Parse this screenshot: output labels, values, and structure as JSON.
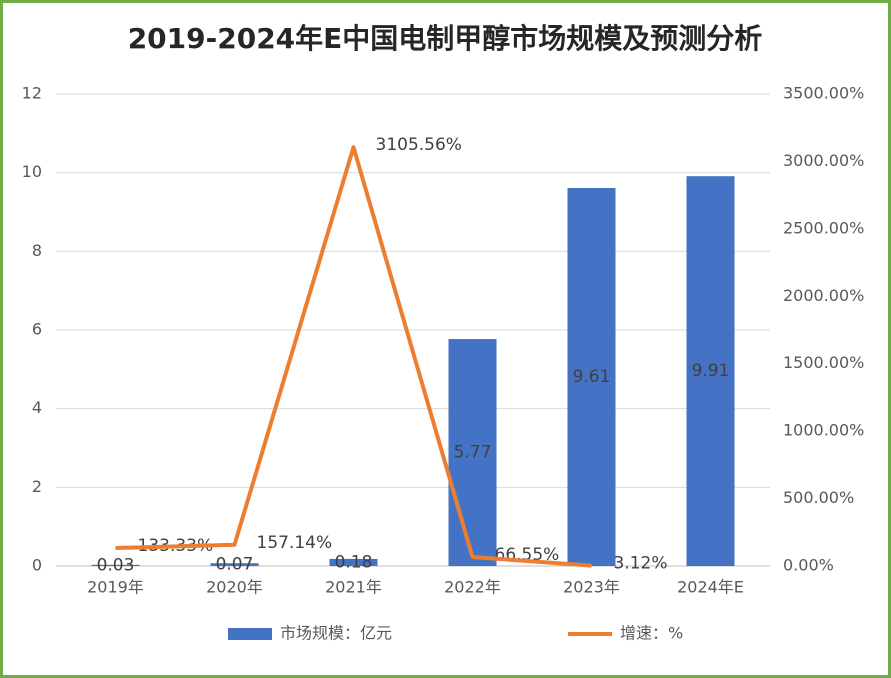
{
  "chart_data": {
    "type": "bar_line",
    "title": "2019-2024年E中国电制甲醇市场规模及预测分析",
    "categories": [
      "2019年",
      "2020年",
      "2021年",
      "2022年",
      "2023年",
      "2024年E"
    ],
    "series": [
      {
        "name": "市场规模：亿元",
        "type": "bar",
        "color": "#4472c4",
        "values": [
          0.03,
          0.07,
          0.18,
          5.77,
          9.61,
          9.91
        ]
      },
      {
        "name": "增速：%",
        "type": "line",
        "axis": "y2",
        "color": "#ed7d31",
        "values": [
          133.33,
          157.14,
          3105.56,
          66.55,
          3.12,
          null
        ],
        "value_labels": [
          "133.33%",
          "157.14%",
          "3105.56%",
          "66.55%",
          "3.12%",
          null
        ]
      }
    ],
    "ylim": [
      0,
      12
    ],
    "yticks": [
      0,
      2,
      4,
      6,
      8,
      10,
      12
    ],
    "y2lim": [
      0,
      3500
    ],
    "y2ticks": [
      {
        "value": 0,
        "label": "0.00%"
      },
      {
        "value": 500,
        "label": "500.00%"
      },
      {
        "value": 1000,
        "label": "1000.00%"
      },
      {
        "value": 1500,
        "label": "1500.00%"
      },
      {
        "value": 2000,
        "label": "2000.00%"
      },
      {
        "value": 2500,
        "label": "2500.00%"
      },
      {
        "value": 3000,
        "label": "3000.00%"
      },
      {
        "value": 3500,
        "label": "3500.00%"
      }
    ],
    "grid": true,
    "legend": "bottom"
  }
}
